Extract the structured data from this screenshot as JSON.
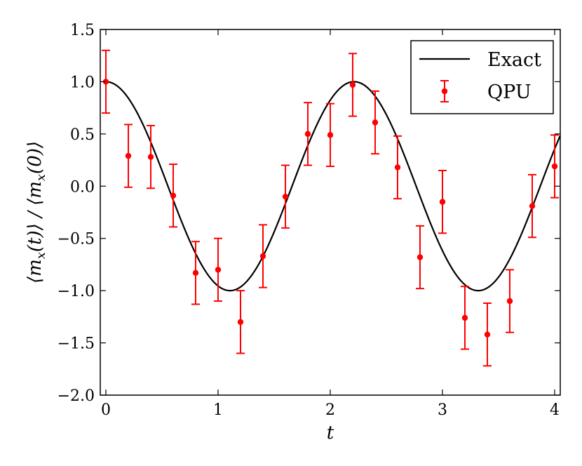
{
  "chart_data": {
    "type": "line",
    "title": "",
    "xlabel": "t",
    "ylabel": "⟨m_x(t)⟩ / ⟨m_x(0)⟩",
    "ylabel_parts": [
      "⟨m",
      "x",
      "(t)⟩ / ⟨m",
      "x",
      "(0)⟩"
    ],
    "xlim": [
      -0.05,
      4.05
    ],
    "ylim": [
      -2.0,
      1.5
    ],
    "xticks": [
      0,
      1,
      2,
      3,
      4
    ],
    "xtick_labels": [
      "0",
      "1",
      "2",
      "3",
      "4"
    ],
    "yticks": [
      -2.0,
      -1.5,
      -1.0,
      -0.5,
      0.0,
      0.5,
      1.0,
      1.5
    ],
    "ytick_labels": [
      "−2.0",
      "−1.5",
      "−1.0",
      "−0.5",
      "0.0",
      "0.5",
      "1.0",
      "1.5"
    ],
    "grid": false,
    "legend_position": "top-right",
    "series": [
      {
        "name": "Exact",
        "kind": "line",
        "color": "#000000",
        "function": "cos(omega * t)",
        "omega": 2.84,
        "x_range": [
          0,
          4.05
        ]
      },
      {
        "name": "QPU",
        "kind": "errorbar",
        "color": "#ff0000",
        "x": [
          0.0,
          0.2,
          0.4,
          0.6,
          0.8,
          1.0,
          1.2,
          1.4,
          1.6,
          1.8,
          2.0,
          2.2,
          2.4,
          2.6,
          2.8,
          3.0,
          3.2,
          3.4,
          3.6,
          3.8,
          4.0
        ],
        "y": [
          1.0,
          0.29,
          0.28,
          -0.09,
          -0.83,
          -0.8,
          -1.3,
          -0.67,
          -0.1,
          0.5,
          0.49,
          0.97,
          0.61,
          0.18,
          -0.68,
          -0.15,
          -1.26,
          -1.42,
          -1.1,
          -0.19,
          0.19
        ],
        "yerr": [
          0.3,
          0.3,
          0.3,
          0.3,
          0.3,
          0.3,
          0.3,
          0.3,
          0.3,
          0.3,
          0.3,
          0.3,
          0.3,
          0.3,
          0.3,
          0.3,
          0.3,
          0.3,
          0.3,
          0.3,
          0.3
        ]
      }
    ]
  }
}
